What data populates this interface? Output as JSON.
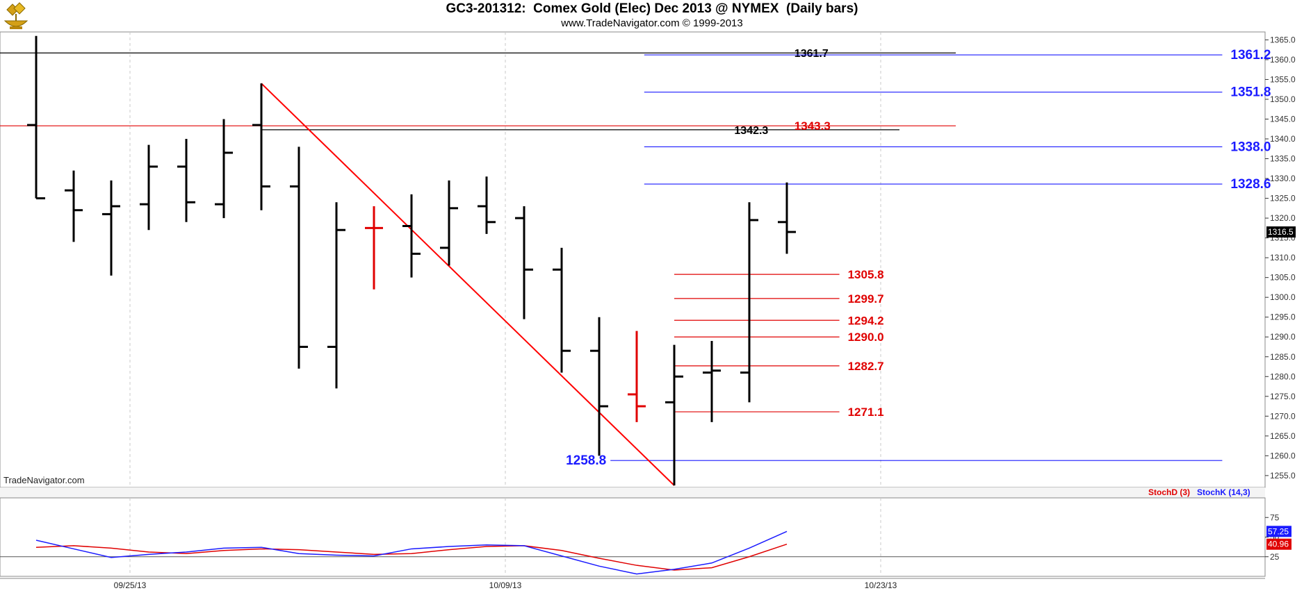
{
  "header": {
    "title": "GC3-201312:  Comex Gold (Elec) Dec 2013 @ NYMEX  (Daily bars)",
    "subtitle": "www.TradeNavigator.com © 1999-2013",
    "logo_icon": "gold-bars-pan-icon"
  },
  "watermark": "TradeNavigator.com",
  "colors": {
    "bar_up": "#000000",
    "bar_highlight": "#e00000",
    "fib_blue": "#1a1aff",
    "fib_red": "#e00000",
    "trendline": "#ff0000",
    "stoch_k": "#1a1aff",
    "stoch_d": "#e00000",
    "grid": "#c8c8c8"
  },
  "chart_data": [
    {
      "type": "ohlc",
      "name": "price",
      "ylim": [
        1252,
        1367
      ],
      "yticks": [
        1255.0,
        1260.0,
        1265.0,
        1270.0,
        1275.0,
        1280.0,
        1285.0,
        1290.0,
        1295.0,
        1300.0,
        1305.0,
        1310.0,
        1315.0,
        1320.0,
        1325.0,
        1330.0,
        1335.0,
        1340.0,
        1345.0,
        1350.0,
        1355.0,
        1360.0,
        1365.0
      ],
      "x_labels": [
        {
          "index": 2.5,
          "label": "09/25/13"
        },
        {
          "index": 12.5,
          "label": "10/09/13"
        },
        {
          "index": 22.5,
          "label": "10/23/13"
        }
      ],
      "last_price": "1316.5",
      "bars": [
        {
          "open": 1343.5,
          "high": 1366.0,
          "low": 1325.0,
          "close": 1325.0
        },
        {
          "open": 1327.0,
          "high": 1332.0,
          "low": 1314.0,
          "close": 1322.0
        },
        {
          "open": 1321.0,
          "high": 1329.5,
          "low": 1305.5,
          "close": 1323.0
        },
        {
          "open": 1323.5,
          "high": 1338.5,
          "low": 1317.0,
          "close": 1333.0
        },
        {
          "open": 1333.0,
          "high": 1340.0,
          "low": 1319.0,
          "close": 1324.0
        },
        {
          "open": 1323.5,
          "high": 1345.0,
          "low": 1320.0,
          "close": 1336.5
        },
        {
          "open": 1343.5,
          "high": 1354.0,
          "low": 1322.0,
          "close": 1328.0
        },
        {
          "open": 1328.0,
          "high": 1338.0,
          "low": 1282.0,
          "close": 1287.5
        },
        {
          "open": 1287.5,
          "high": 1324.0,
          "low": 1277.0,
          "close": 1317.0
        },
        {
          "open": 1317.5,
          "high": 1323.0,
          "low": 1302.0,
          "close": 1317.5,
          "highlight": true
        },
        {
          "open": 1318.0,
          "high": 1326.0,
          "low": 1305.0,
          "close": 1311.0
        },
        {
          "open": 1312.5,
          "high": 1329.5,
          "low": 1308.0,
          "close": 1322.5
        },
        {
          "open": 1323.0,
          "high": 1330.5,
          "low": 1316.0,
          "close": 1319.0
        },
        {
          "open": 1320.0,
          "high": 1323.0,
          "low": 1294.5,
          "close": 1307.0
        },
        {
          "open": 1307.0,
          "high": 1312.5,
          "low": 1281.0,
          "close": 1286.5
        },
        {
          "open": 1286.5,
          "high": 1295.0,
          "low": 1260.0,
          "close": 1272.5
        },
        {
          "open": 1275.5,
          "high": 1291.5,
          "low": 1268.5,
          "close": 1272.5,
          "highlight": true
        },
        {
          "open": 1273.5,
          "high": 1288.0,
          "low": 1252.5,
          "close": 1280.0
        },
        {
          "open": 1281.0,
          "high": 1289.0,
          "low": 1268.5,
          "close": 1281.5
        },
        {
          "open": 1281.0,
          "high": 1324.0,
          "low": 1273.5,
          "close": 1319.5
        },
        {
          "open": 1319.0,
          "high": 1329.0,
          "low": 1311.0,
          "close": 1316.5
        }
      ],
      "trendline": {
        "from": {
          "index": 6,
          "value": 1354.0
        },
        "to": {
          "index": 17,
          "value": 1252.5
        }
      },
      "levels": [
        {
          "value": 1361.7,
          "label": "1361.7",
          "color": "black",
          "x_from_index": -1,
          "x_to_index": 24.5
        },
        {
          "value": 1342.3,
          "label": "1342.3",
          "color": "black",
          "x_from_index": 6,
          "x_to_index": 23
        },
        {
          "value": 1343.3,
          "label": "1343.3",
          "color": "red",
          "x_from_index": -1,
          "x_to_index": 24.5
        },
        {
          "value": 1361.2,
          "label": "1361.2",
          "color": "blue",
          "x_from_index": 16.2,
          "x_to_index": 31.6
        },
        {
          "value": 1351.8,
          "label": "1351.8",
          "color": "blue",
          "x_from_index": 16.2,
          "x_to_index": 31.6
        },
        {
          "value": 1338.0,
          "label": "1338.0",
          "color": "blue",
          "x_from_index": 16.2,
          "x_to_index": 31.6
        },
        {
          "value": 1328.6,
          "label": "1328.6",
          "color": "blue",
          "x_from_index": 16.2,
          "x_to_index": 31.6
        },
        {
          "value": 1258.8,
          "label": "1258.8",
          "color": "blue",
          "x_from_index": 15.3,
          "x_to_index": 31.6
        },
        {
          "value": 1305.8,
          "label": "1305.8",
          "color": "red",
          "x_from_index": 17.0,
          "x_to_index": 21.4
        },
        {
          "value": 1299.7,
          "label": "1299.7",
          "color": "red",
          "x_from_index": 17.0,
          "x_to_index": 21.4
        },
        {
          "value": 1294.2,
          "label": "1294.2",
          "color": "red",
          "x_from_index": 17.0,
          "x_to_index": 21.4
        },
        {
          "value": 1290.0,
          "label": "1290.0",
          "color": "red",
          "x_from_index": 17.0,
          "x_to_index": 21.4
        },
        {
          "value": 1282.7,
          "label": "1282.7",
          "color": "red",
          "x_from_index": 17.0,
          "x_to_index": 21.4
        },
        {
          "value": 1271.1,
          "label": "1271.1",
          "color": "red",
          "x_from_index": 17.0,
          "x_to_index": 21.4
        }
      ]
    },
    {
      "type": "line",
      "name": "stochastic",
      "ylim": [
        0,
        100
      ],
      "yticks": [
        25,
        50,
        75
      ],
      "legend": [
        "StochD (3)",
        "StochK (14,3)"
      ],
      "series": [
        {
          "name": "StochK (14,3)",
          "color": "blue",
          "last_label": "57.25",
          "values": [
            46,
            35,
            24,
            28,
            31,
            36,
            37,
            29,
            27,
            26,
            35,
            38,
            40,
            39,
            26,
            13,
            3,
            9,
            17,
            36,
            57.25
          ]
        },
        {
          "name": "StochD (3)",
          "color": "red",
          "last_label": "40.96",
          "values": [
            37,
            39,
            36,
            31,
            29,
            33,
            35,
            34,
            31,
            28,
            29,
            34,
            38,
            39,
            33,
            23,
            14,
            8,
            11,
            25,
            40.96
          ]
        }
      ]
    }
  ]
}
